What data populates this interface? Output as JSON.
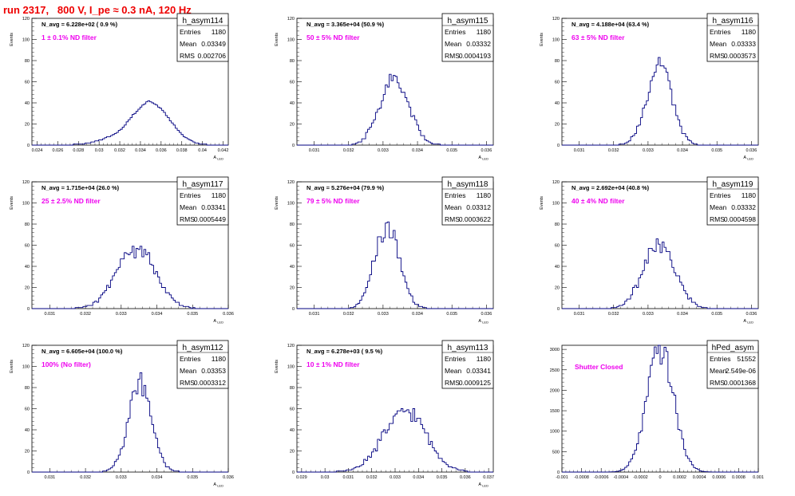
{
  "page": {
    "title": "run 2317,   800 V, I_pe ≈ 0.3 nA, 120 Hz",
    "title_color": "#ee0000",
    "annotation_color": "#ee00ee",
    "line_color": "#000080"
  },
  "chart_data": [
    {
      "type": "histogram",
      "hist_name": "h_asym114",
      "stats": {
        "entries_label": "Entries",
        "entries": "1180",
        "mean_label": "Mean",
        "mean": "0.03349",
        "rms_label": "RMS",
        "rms": "0.002706"
      },
      "navg": "N_avg = 6.228e+02 ( 0.9 %)",
      "filter": "1 ± 0.1% ND filter",
      "ylabel": "Events",
      "xlabel": "A_LED",
      "xlim": [
        0.0235,
        0.0425
      ],
      "ylim": [
        0,
        120
      ],
      "xticks": [
        0.024,
        0.026,
        0.028,
        0.03,
        0.032,
        0.034,
        0.036,
        0.038,
        0.04,
        0.042
      ],
      "xtick_labels": [
        "0.024",
        "0.026",
        "0.028",
        "0.03",
        "0.032",
        "0.034",
        "0.036",
        "0.038",
        "0.04",
        "0.042"
      ],
      "yticks": [
        0,
        20,
        40,
        60,
        80,
        100,
        120
      ],
      "mean_value": 0.03349,
      "sigma_value": 0.0027,
      "peak_value": 42,
      "bins": 100,
      "bin_values": [
        0,
        0,
        0,
        0,
        0,
        0,
        0,
        0,
        0,
        0,
        0,
        0,
        0,
        0,
        0,
        0,
        0,
        0,
        0,
        0,
        0,
        1,
        1,
        1,
        1,
        1,
        1,
        2,
        2,
        2,
        3,
        3,
        4,
        4,
        5,
        5,
        6,
        7,
        8,
        8,
        9,
        10,
        11,
        12,
        14,
        15,
        17,
        19,
        22,
        24,
        26,
        29,
        30,
        32,
        34,
        36,
        38,
        39,
        41,
        42,
        41,
        40,
        39,
        38,
        36,
        35,
        33,
        31,
        28,
        26,
        23,
        21,
        19,
        16,
        14,
        12,
        10,
        8,
        7,
        6,
        5,
        4,
        3,
        2,
        2,
        1,
        1,
        1,
        1,
        0,
        0,
        0,
        0,
        0,
        0,
        0,
        0,
        0,
        0,
        0
      ]
    },
    {
      "type": "histogram",
      "hist_name": "h_asym115",
      "stats": {
        "entries_label": "Entries",
        "entries": "1180",
        "mean_label": "Mean",
        "mean": "0.03332",
        "rms_label": "RMS",
        "rms": "0.0004193"
      },
      "navg": "N_avg = 3.365e+04 (50.9 %)",
      "filter": "50 ± 5% ND filter",
      "ylabel": "Events",
      "xlabel": "A_LED",
      "xlim": [
        0.0305,
        0.0362
      ],
      "ylim": [
        0,
        120
      ],
      "xticks": [
        0.031,
        0.032,
        0.033,
        0.034,
        0.035,
        0.036
      ],
      "xtick_labels": [
        "0.031",
        "0.032",
        "0.033",
        "0.034",
        "0.035",
        "0.036"
      ],
      "yticks": [
        0,
        20,
        40,
        60,
        80,
        100,
        120
      ],
      "mean_value": 0.03332,
      "sigma_value": 0.00042,
      "peak_value": 62,
      "bins": 100
    },
    {
      "type": "histogram",
      "hist_name": "h_asym116",
      "stats": {
        "entries_label": "Entries",
        "entries": "1180",
        "mean_label": "Mean",
        "mean": "0.03333",
        "rms_label": "RMS",
        "rms": "0.0003573"
      },
      "navg": "N_avg = 4.188e+04 (63.4 %)",
      "filter": "63 ± 5% ND filter",
      "ylabel": "Events",
      "xlabel": "A_LED",
      "xlim": [
        0.0305,
        0.0362
      ],
      "ylim": [
        0,
        120
      ],
      "xticks": [
        0.031,
        0.032,
        0.033,
        0.034,
        0.035,
        0.036
      ],
      "xtick_labels": [
        "0.031",
        "0.032",
        "0.033",
        "0.034",
        "0.035",
        "0.036"
      ],
      "yticks": [
        0,
        20,
        40,
        60,
        80,
        100,
        120
      ],
      "mean_value": 0.03333,
      "sigma_value": 0.00036,
      "peak_value": 78,
      "bins": 100
    },
    {
      "type": "histogram",
      "hist_name": "h_asym117",
      "stats": {
        "entries_label": "Entries",
        "entries": "1180",
        "mean_label": "Mean",
        "mean": "0.03341",
        "rms_label": "RMS",
        "rms": "0.0005449"
      },
      "navg": "N_avg = 1.715e+04 (26.0 %)",
      "filter": "25 ± 2.5% ND filter",
      "ylabel": "Events",
      "xlabel": "A_LED",
      "xlim": [
        0.0305,
        0.036
      ],
      "ylim": [
        0,
        120
      ],
      "xticks": [
        0.031,
        0.032,
        0.033,
        0.034,
        0.035,
        0.036
      ],
      "xtick_labels": [
        "0.031",
        "0.032",
        "0.033",
        "0.034",
        "0.035",
        "0.036"
      ],
      "yticks": [
        0,
        20,
        40,
        60,
        80,
        100,
        120
      ],
      "mean_value": 0.03341,
      "sigma_value": 0.00054,
      "peak_value": 58,
      "bins": 100
    },
    {
      "type": "histogram",
      "hist_name": "h_asym118",
      "stats": {
        "entries_label": "Entries",
        "entries": "1180",
        "mean_label": "Mean",
        "mean": "0.03312",
        "rms_label": "RMS",
        "rms": "0.0003622"
      },
      "navg": "N_avg = 5.276e+04 (79.9 %)",
      "filter": "79 ± 5% ND filter",
      "ylabel": "Events",
      "xlabel": "A_LED",
      "xlim": [
        0.0305,
        0.0362
      ],
      "ylim": [
        0,
        120
      ],
      "xticks": [
        0.031,
        0.032,
        0.033,
        0.034,
        0.035,
        0.036
      ],
      "xtick_labels": [
        "0.031",
        "0.032",
        "0.033",
        "0.034",
        "0.035",
        "0.036"
      ],
      "yticks": [
        0,
        20,
        40,
        60,
        80,
        100,
        120
      ],
      "mean_value": 0.03312,
      "sigma_value": 0.00036,
      "peak_value": 77,
      "bins": 100
    },
    {
      "type": "histogram",
      "hist_name": "h_asym119",
      "stats": {
        "entries_label": "Entries",
        "entries": "1180",
        "mean_label": "Mean",
        "mean": "0.03332",
        "rms_label": "RMS",
        "rms": "0.0004598"
      },
      "navg": "N_avg = 2.692e+04 (40.8 %)",
      "filter": "40 ± 4% ND filter",
      "ylabel": "Events",
      "xlabel": "A_LED",
      "xlim": [
        0.0305,
        0.0362
      ],
      "ylim": [
        0,
        120
      ],
      "xticks": [
        0.031,
        0.032,
        0.033,
        0.034,
        0.035,
        0.036
      ],
      "xtick_labels": [
        "0.031",
        "0.032",
        "0.033",
        "0.034",
        "0.035",
        "0.036"
      ],
      "yticks": [
        0,
        20,
        40,
        60,
        80,
        100,
        120
      ],
      "mean_value": 0.03332,
      "sigma_value": 0.00046,
      "peak_value": 60,
      "bins": 100
    },
    {
      "type": "histogram",
      "hist_name": "h_asym112",
      "stats": {
        "entries_label": "Entries",
        "entries": "1180",
        "mean_label": "Mean",
        "mean": "0.03353",
        "rms_label": "RMS",
        "rms": "0.0003312"
      },
      "navg": "N_avg = 6.605e+04 (100.0 %)",
      "filter": "100% (No filter)",
      "ylabel": "Events",
      "xlabel": "A_LED",
      "xlim": [
        0.0305,
        0.036
      ],
      "ylim": [
        0,
        120
      ],
      "xticks": [
        0.031,
        0.032,
        0.033,
        0.034,
        0.035,
        0.036
      ],
      "xtick_labels": [
        "0.031",
        "0.032",
        "0.033",
        "0.034",
        "0.035",
        "0.036"
      ],
      "yticks": [
        0,
        20,
        40,
        60,
        80,
        100,
        120
      ],
      "mean_value": 0.03353,
      "sigma_value": 0.00033,
      "peak_value": 82,
      "bins": 100
    },
    {
      "type": "histogram",
      "hist_name": "h_asym113",
      "stats": {
        "entries_label": "Entries",
        "entries": "1180",
        "mean_label": "Mean",
        "mean": "0.03341",
        "rms_label": "RMS",
        "rms": "0.0009125"
      },
      "navg": "N_avg = 6.278e+03 ( 9.5 %)",
      "filter": "10 ± 1% ND filter",
      "ylabel": "Events",
      "xlabel": "A_LED",
      "xlim": [
        0.0288,
        0.0372
      ],
      "ylim": [
        0,
        120
      ],
      "xticks": [
        0.029,
        0.03,
        0.031,
        0.032,
        0.033,
        0.034,
        0.035,
        0.036,
        0.037
      ],
      "xtick_labels": [
        "0.029",
        "0.03",
        "0.031",
        "0.032",
        "0.033",
        "0.034",
        "0.035",
        "0.036",
        "0.037"
      ],
      "yticks": [
        0,
        20,
        40,
        60,
        80,
        100,
        120
      ],
      "mean_value": 0.03341,
      "sigma_value": 0.00091,
      "peak_value": 58,
      "bins": 100
    },
    {
      "type": "histogram",
      "hist_name": "hPed_asym",
      "stats": {
        "entries_label": "Entries",
        "entries": "51552",
        "mean_label": "Mean",
        "mean": "2.549e-06",
        "rms_label": "RMS",
        "rms": "0.0001368"
      },
      "navg": "",
      "filter": "Shutter Closed",
      "ylabel": "",
      "xlabel": "",
      "xlim": [
        -0.001,
        0.001
      ],
      "ylim": [
        0,
        3100
      ],
      "xticks": [
        -0.001,
        -0.0008,
        -0.0006,
        -0.0004,
        -0.0002,
        0,
        0.0002,
        0.0004,
        0.0006,
        0.0008,
        0.001
      ],
      "xtick_labels": [
        "-0.001",
        "-0.0008",
        "-0.0006",
        "-0.0004",
        "-0.0002",
        "0",
        "0.0002",
        "0.0004",
        "0.0006",
        "0.0008",
        "0.001"
      ],
      "yticks": [
        0,
        500,
        1000,
        1500,
        2000,
        2500,
        3000
      ],
      "mean_value": 2.5e-06,
      "sigma_value": 0.000137,
      "peak_value": 2980,
      "bins": 100
    }
  ]
}
